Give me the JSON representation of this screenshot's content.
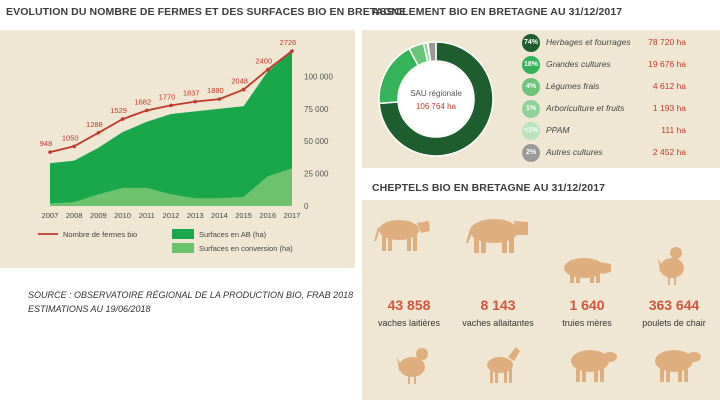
{
  "left": {
    "title": "EVOLUTION DU NOMBRE DE FERMES ET DES SURFACES BIO EN BRETAGNE",
    "source_line1": "SOURCE : OBSERVATOIRE RÉGIONAL DE LA PRODUCTION BIO, FRAB 2018",
    "source_line2": "ESTIMATIONS AU 19/06/2018"
  },
  "assolement": {
    "title": "ASSOLEMENT BIO EN BRETAGNE AU 31/12/2017",
    "center_label": "SAU régionale",
    "center_value": "106 764 ha"
  },
  "cheptels": {
    "title": "CHEPTELS BIO EN BRETAGNE AU 31/12/2017",
    "items": [
      {
        "value": "43 858",
        "label": "vaches laitières"
      },
      {
        "value": "8 143",
        "label": "vaches allaitantes"
      },
      {
        "value": "1 640",
        "label": "truies mères"
      },
      {
        "value": "363 644",
        "label": "poulets de chair"
      }
    ],
    "icon_color": "#dfae7e"
  },
  "chart_data": [
    {
      "type": "area",
      "title": "EVOLUTION DU NOMBRE DE FERMES ET DES SURFACES BIO EN BRETAGNE",
      "x": [
        "2007",
        "2008",
        "2009",
        "2010",
        "2011",
        "2012",
        "2013",
        "2014",
        "2015",
        "2016",
        "2017"
      ],
      "ylim": [
        0,
        125000
      ],
      "y_ticks": [
        "0",
        "25 000",
        "50 000",
        "75 000",
        "100 000"
      ],
      "grid": false,
      "series": [
        {
          "name": "Surfaces en AB (ha)",
          "color": "#1aa64a",
          "values": [
            33000,
            35000,
            45000,
            57000,
            65000,
            71000,
            73000,
            75000,
            77000,
            104000,
            119000
          ]
        },
        {
          "name": "Surfaces en conversion (ha)",
          "color": "#6dc26e",
          "values": [
            2000,
            3000,
            9000,
            14000,
            14000,
            9000,
            6000,
            6000,
            7000,
            23000,
            29000
          ]
        },
        {
          "name": "Nombre de fermes bio",
          "color": "#c0392b",
          "line": true,
          "values": [
            948,
            1050,
            1288,
            1529,
            1682,
            1770,
            1837,
            1880,
            2048,
            2400,
            2726
          ],
          "labels": [
            "948",
            "1050",
            "1288",
            "1529",
            "1682",
            "1770",
            "1837",
            "1880",
            "2048",
            "2400",
            "2726"
          ]
        }
      ],
      "legend_position": "bottom"
    },
    {
      "type": "pie",
      "title": "ASSOLEMENT BIO EN BRETAGNE AU 31/12/2017",
      "slices": [
        {
          "label": "Herbages et fourrages",
          "pct_label": "74%",
          "pct": 73.7,
          "value": "78 720 ha",
          "color": "#1e5e2e"
        },
        {
          "label": "Grandes cultures",
          "pct_label": "18%",
          "pct": 18.4,
          "value": "19 676 ha",
          "color": "#34b35a"
        },
        {
          "label": "Légumes frais",
          "pct_label": "4%",
          "pct": 4.3,
          "value": "4 612 ha",
          "color": "#6cc47a"
        },
        {
          "label": "Arboriculture et fruits",
          "pct_label": "1%",
          "pct": 1.1,
          "value": "1 193 ha",
          "color": "#8fd39a"
        },
        {
          "label": "PPAM",
          "pct_label": "<1%",
          "pct": 0.1,
          "value": "111 ha",
          "color": "#b9e2bf"
        },
        {
          "label": "Autres cultures",
          "pct_label": "2%",
          "pct": 2.3,
          "value": "2 452 ha",
          "color": "#9a9a9a"
        }
      ],
      "legend_position": "right"
    }
  ]
}
